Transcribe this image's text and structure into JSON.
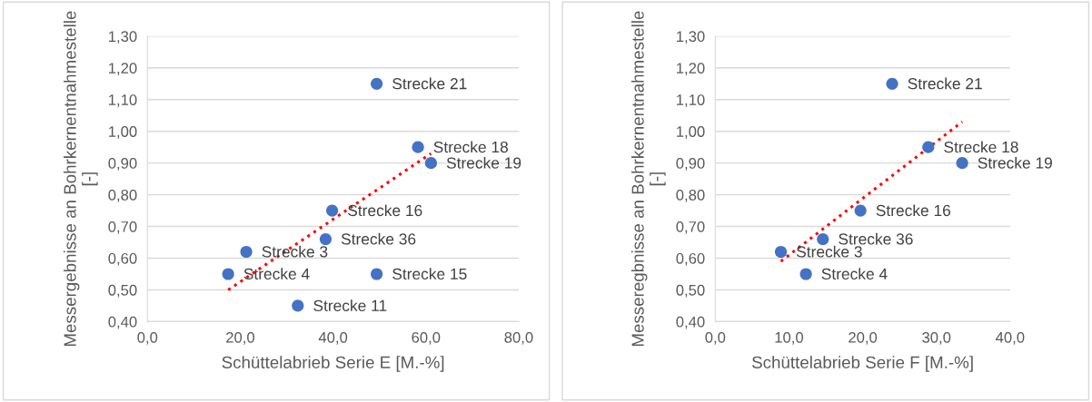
{
  "chart_data": [
    {
      "type": "scatter",
      "xlabel": "Schüttelabrieb Serie E [M.-%]",
      "ylabel": "Messergebnisse an Bohrkernentnahmestelle [-]",
      "series": [
        {
          "type": "scatter",
          "color": "#4472c4",
          "marker": "circle",
          "x": [
            49.4,
            58.3,
            61.1,
            39.8,
            38.4,
            21.3,
            17.4,
            49.4,
            32.4
          ],
          "values": [
            1.15,
            0.95,
            0.9,
            0.75,
            0.66,
            0.62,
            0.55,
            0.55,
            0.45
          ]
        },
        {
          "type": "line",
          "color": "#ff0000",
          "line_style": "dotted",
          "x": [
            17.4,
            61.1
          ],
          "values": [
            0.5,
            0.93
          ]
        }
      ],
      "annotations": [
        {
          "text": "Strecke 21",
          "x": 49.4,
          "y": 1.15
        },
        {
          "text": "Strecke 18",
          "x": 58.3,
          "y": 0.95
        },
        {
          "text": "Strecke 19",
          "x": 61.1,
          "y": 0.9
        },
        {
          "text": "Strecke 16",
          "x": 39.8,
          "y": 0.75
        },
        {
          "text": "Strecke 36",
          "x": 38.4,
          "y": 0.66
        },
        {
          "text": "Strecke 3",
          "x": 21.3,
          "y": 0.62
        },
        {
          "text": "Strecke 4",
          "x": 17.4,
          "y": 0.55
        },
        {
          "text": "Strecke 15",
          "x": 49.4,
          "y": 0.55
        },
        {
          "text": "Strecke 11",
          "x": 32.4,
          "y": 0.45
        }
      ],
      "xlim": [
        0,
        80
      ],
      "xticks": [
        {
          "value": 0,
          "label": "0,0"
        },
        {
          "value": 20,
          "label": "20,0"
        },
        {
          "value": 40,
          "label": "40,0"
        },
        {
          "value": 60,
          "label": "60,0"
        },
        {
          "value": 80,
          "label": "80,0"
        }
      ],
      "ylim": [
        0.4,
        1.3
      ],
      "yticks": [
        {
          "value": 0.4,
          "label": "0,40"
        },
        {
          "value": 0.5,
          "label": "0,50"
        },
        {
          "value": 0.6,
          "label": "0,60"
        },
        {
          "value": 0.7,
          "label": "0,70"
        },
        {
          "value": 0.8,
          "label": "0,80"
        },
        {
          "value": 0.9,
          "label": "0,90"
        },
        {
          "value": 1.0,
          "label": "1,00"
        },
        {
          "value": 1.1,
          "label": "1,10"
        },
        {
          "value": 1.2,
          "label": "1,20"
        },
        {
          "value": 1.3,
          "label": "1,30"
        }
      ],
      "grid": "y"
    },
    {
      "type": "scatter",
      "xlabel": "Schüttelabrieb Serie F [M.-%]",
      "ylabel": "Messeregbnisse an Bohrkernentnahmestelle [-]",
      "series": [
        {
          "type": "scatter",
          "color": "#4472c4",
          "marker": "circle",
          "x": [
            24.0,
            28.9,
            33.5,
            19.7,
            14.6,
            8.9,
            12.3
          ],
          "values": [
            1.15,
            0.95,
            0.9,
            0.75,
            0.66,
            0.62,
            0.55
          ]
        },
        {
          "type": "line",
          "color": "#ff0000",
          "line_style": "dotted",
          "x": [
            8.9,
            33.5
          ],
          "values": [
            0.59,
            1.03
          ]
        }
      ],
      "annotations": [
        {
          "text": "Strecke 21",
          "x": 24.0,
          "y": 1.15
        },
        {
          "text": "Strecke 18",
          "x": 28.9,
          "y": 0.95
        },
        {
          "text": "Strecke 19",
          "x": 33.5,
          "y": 0.9
        },
        {
          "text": "Strecke 16",
          "x": 19.7,
          "y": 0.75
        },
        {
          "text": "Strecke 36",
          "x": 14.6,
          "y": 0.66
        },
        {
          "text": "Strecke 3",
          "x": 8.9,
          "y": 0.62
        },
        {
          "text": "Strecke 4",
          "x": 12.3,
          "y": 0.55
        }
      ],
      "xlim": [
        0,
        40
      ],
      "xticks": [
        {
          "value": 0,
          "label": "0,0"
        },
        {
          "value": 10,
          "label": "10,0"
        },
        {
          "value": 20,
          "label": "20,0"
        },
        {
          "value": 30,
          "label": "30,0"
        },
        {
          "value": 40,
          "label": "40,0"
        }
      ],
      "ylim": [
        0.4,
        1.3
      ],
      "yticks": [
        {
          "value": 0.4,
          "label": "0,40"
        },
        {
          "value": 0.5,
          "label": "0,50"
        },
        {
          "value": 0.6,
          "label": "0,60"
        },
        {
          "value": 0.7,
          "label": "0,70"
        },
        {
          "value": 0.8,
          "label": "0,80"
        },
        {
          "value": 0.9,
          "label": "0,90"
        },
        {
          "value": 1.0,
          "label": "1,00"
        },
        {
          "value": 1.1,
          "label": "1,10"
        },
        {
          "value": 1.2,
          "label": "1,20"
        },
        {
          "value": 1.3,
          "label": "1,30"
        }
      ],
      "grid": "y"
    }
  ]
}
